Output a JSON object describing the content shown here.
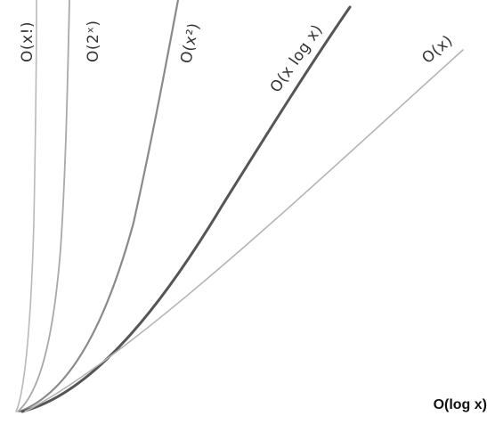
{
  "chart_data": {
    "type": "line",
    "title": "",
    "xlabel": "",
    "ylabel": "",
    "grid": false,
    "legend": "none",
    "series": [
      {
        "name": "O(x!)",
        "color": "#b9b9b9",
        "function": "factorial"
      },
      {
        "name": "O(2ˣ)",
        "color": "#a9a9a9",
        "function": "exponential"
      },
      {
        "name": "O(x²)",
        "color": "#8a8a8a",
        "function": "quadratic"
      },
      {
        "name": "O(x log x)",
        "color": "#555555",
        "function": "linearithmic"
      },
      {
        "name": "O(x)",
        "color": "#b4b4b4",
        "function": "linear"
      }
    ],
    "annotation": {
      "text": "O(log x)",
      "color": "#111111"
    }
  }
}
